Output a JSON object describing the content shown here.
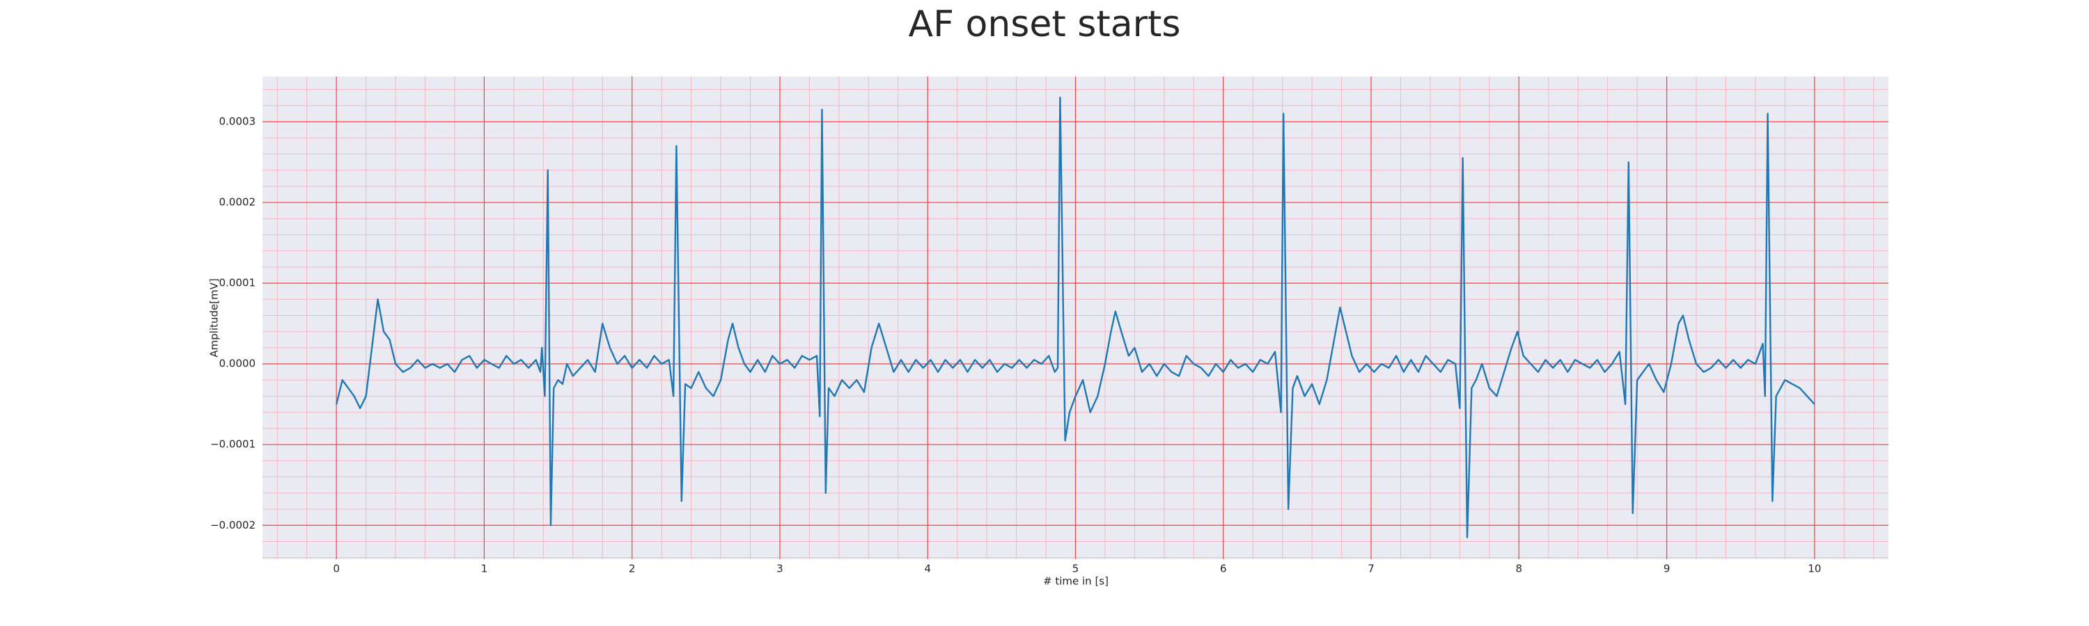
{
  "chart_data": {
    "type": "line",
    "title": "AF onset starts",
    "x_label": "# time in [s]",
    "y_label": "Amplitude[mV]",
    "color": "#1f77b4",
    "grid": true,
    "minor_grid": true,
    "xlim": [
      -0.5,
      10.5
    ],
    "xticks": [
      0,
      1,
      2,
      3,
      4,
      5,
      6,
      7,
      8,
      9,
      10
    ],
    "ylim": [
      -0.000242,
      0.000356
    ],
    "yticks": [
      {
        "value": -0.0002,
        "label": "−0.0002"
      },
      {
        "value": -0.0001,
        "label": "−0.0001"
      },
      {
        "value": 0,
        "label": "0.0000"
      },
      {
        "value": 0.0001,
        "label": "0.0001"
      },
      {
        "value": 0.0002,
        "label": "0.0002"
      },
      {
        "value": 0.0003,
        "label": "0.0003"
      }
    ],
    "x": [
      0,
      0.04,
      0.08,
      0.12,
      0.16,
      0.2,
      0.24,
      0.28,
      0.32,
      0.36,
      0.4,
      0.45,
      0.5,
      0.55,
      0.6,
      0.65,
      0.7,
      0.75,
      0.8,
      0.85,
      0.9,
      0.95,
      1.0,
      1.05,
      1.1,
      1.15,
      1.2,
      1.25,
      1.3,
      1.35,
      1.38,
      1.39,
      1.41,
      1.43,
      1.45,
      1.47,
      1.5,
      1.53,
      1.56,
      1.6,
      1.65,
      1.7,
      1.75,
      1.8,
      1.85,
      1.9,
      1.95,
      2.0,
      2.05,
      2.1,
      2.15,
      2.2,
      2.25,
      2.28,
      2.3,
      2.335,
      2.36,
      2.4,
      2.45,
      2.5,
      2.55,
      2.6,
      2.65,
      2.68,
      2.72,
      2.76,
      2.8,
      2.85,
      2.9,
      2.95,
      3.0,
      3.05,
      3.1,
      3.15,
      3.2,
      3.25,
      3.27,
      3.285,
      3.31,
      3.33,
      3.37,
      3.42,
      3.47,
      3.52,
      3.57,
      3.62,
      3.67,
      3.72,
      3.77,
      3.82,
      3.87,
      3.92,
      3.97,
      4.02,
      4.07,
      4.12,
      4.17,
      4.22,
      4.27,
      4.32,
      4.37,
      4.42,
      4.47,
      4.52,
      4.57,
      4.62,
      4.67,
      4.72,
      4.77,
      4.82,
      4.86,
      4.88,
      4.896,
      4.93,
      4.96,
      5.0,
      5.05,
      5.1,
      5.15,
      5.2,
      5.24,
      5.27,
      5.31,
      5.36,
      5.4,
      5.45,
      5.5,
      5.55,
      5.6,
      5.65,
      5.7,
      5.75,
      5.8,
      5.85,
      5.9,
      5.95,
      6.0,
      6.05,
      6.1,
      6.15,
      6.2,
      6.25,
      6.3,
      6.35,
      6.39,
      6.407,
      6.44,
      6.47,
      6.5,
      6.55,
      6.6,
      6.65,
      6.7,
      6.75,
      6.79,
      6.83,
      6.87,
      6.92,
      6.97,
      7.02,
      7.07,
      7.12,
      7.17,
      7.22,
      7.27,
      7.32,
      7.37,
      7.42,
      7.47,
      7.52,
      7.57,
      7.6,
      7.62,
      7.65,
      7.68,
      7.71,
      7.75,
      7.8,
      7.85,
      7.9,
      7.95,
      7.99,
      8.03,
      8.08,
      8.13,
      8.18,
      8.23,
      8.28,
      8.33,
      8.38,
      8.43,
      8.48,
      8.53,
      8.58,
      8.63,
      8.68,
      8.72,
      8.742,
      8.77,
      8.8,
      8.84,
      8.88,
      8.93,
      8.98,
      9.03,
      9.08,
      9.11,
      9.15,
      9.2,
      9.25,
      9.3,
      9.35,
      9.4,
      9.45,
      9.5,
      9.55,
      9.6,
      9.65,
      9.665,
      9.683,
      9.715,
      9.74,
      9.77,
      9.8,
      9.85,
      9.9,
      9.95,
      10.0
    ],
    "values": [
      -5e-05,
      -2e-05,
      -3e-05,
      -4e-05,
      -5.5e-05,
      -4e-05,
      2e-05,
      8e-05,
      4e-05,
      3e-05,
      0,
      -1e-05,
      -5e-06,
      5e-06,
      -5e-06,
      0,
      -5e-06,
      0,
      -1e-05,
      5e-06,
      1e-05,
      -5e-06,
      5e-06,
      0,
      -5e-06,
      1e-05,
      0,
      5e-06,
      -5e-06,
      5e-06,
      -1e-05,
      2e-05,
      -4e-05,
      0.00024,
      -0.0002,
      -3e-05,
      -2e-05,
      -2.5e-05,
      0,
      -1.5e-05,
      -5e-06,
      5e-06,
      -1e-05,
      5e-05,
      2e-05,
      0,
      1e-05,
      -5e-06,
      5e-06,
      -5e-06,
      1e-05,
      0,
      5e-06,
      -4e-05,
      0.00027,
      -0.00017,
      -2.5e-05,
      -3e-05,
      -1e-05,
      -3e-05,
      -4e-05,
      -2e-05,
      3e-05,
      5e-05,
      2e-05,
      0,
      -1e-05,
      5e-06,
      -1e-05,
      1e-05,
      0,
      5e-06,
      -5e-06,
      1e-05,
      5e-06,
      1e-05,
      -6.5e-05,
      0.000315,
      -0.00016,
      -3e-05,
      -4e-05,
      -2e-05,
      -3e-05,
      -2e-05,
      -3.5e-05,
      2e-05,
      5e-05,
      2e-05,
      -1e-05,
      5e-06,
      -1e-05,
      5e-06,
      -5e-06,
      5e-06,
      -1e-05,
      5e-06,
      -5e-06,
      5e-06,
      -1e-05,
      5e-06,
      -5e-06,
      5e-06,
      -1e-05,
      0,
      -5e-06,
      5e-06,
      -5e-06,
      5e-06,
      0,
      1e-05,
      -1e-05,
      -5e-06,
      0.00033,
      -9.5e-05,
      -6e-05,
      -4e-05,
      -2e-05,
      -6e-05,
      -4e-05,
      0,
      4e-05,
      6.5e-05,
      4e-05,
      1e-05,
      2e-05,
      -1e-05,
      0,
      -1.5e-05,
      0,
      -1e-05,
      -1.5e-05,
      1e-05,
      0,
      -5e-06,
      -1.5e-05,
      0,
      -1e-05,
      5e-06,
      -5e-06,
      0,
      -1e-05,
      5e-06,
      0,
      1.5e-05,
      -6e-05,
      0.00031,
      -0.00018,
      -3e-05,
      -1.5e-05,
      -4e-05,
      -2.5e-05,
      -5e-05,
      -2e-05,
      3e-05,
      7e-05,
      4e-05,
      1e-05,
      -1e-05,
      0,
      -1e-05,
      0,
      -5e-06,
      1e-05,
      -1e-05,
      5e-06,
      -1e-05,
      1e-05,
      0,
      -1e-05,
      5e-06,
      0,
      -5.5e-05,
      0.000255,
      -0.000215,
      -3e-05,
      -2e-05,
      0,
      -3e-05,
      -4e-05,
      -1e-05,
      2e-05,
      4e-05,
      1e-05,
      0,
      -1e-05,
      5e-06,
      -5e-06,
      5e-06,
      -1e-05,
      5e-06,
      0,
      -5e-06,
      5e-06,
      -1e-05,
      0,
      1.5e-05,
      -5e-05,
      0.00025,
      -0.000185,
      -2e-05,
      -1e-05,
      0,
      -2e-05,
      -3.5e-05,
      0,
      5e-05,
      6e-05,
      3e-05,
      0,
      -1e-05,
      -5e-06,
      5e-06,
      -5e-06,
      5e-06,
      -5e-06,
      5e-06,
      0,
      2.5e-05,
      -4e-05,
      0.00031,
      -0.00017,
      -4e-05,
      -3e-05,
      -2e-05,
      -2.5e-05,
      -3e-05,
      -4e-05,
      -5e-05
    ]
  }
}
